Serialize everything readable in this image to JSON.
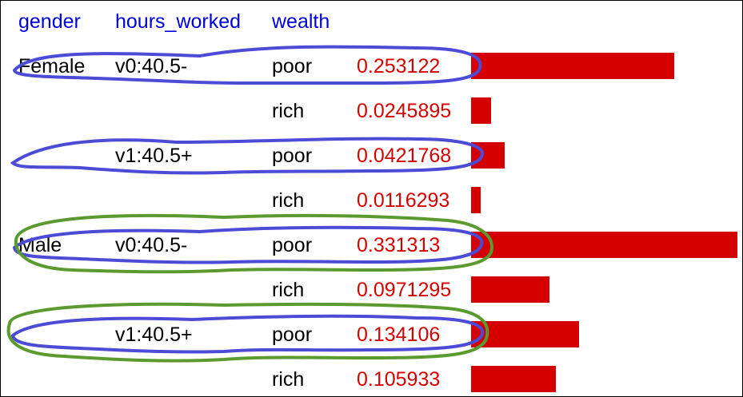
{
  "headers": {
    "gender": "gender",
    "hours_worked": "hours_worked",
    "wealth": "wealth"
  },
  "rows": [
    {
      "gender": "Female",
      "hours": "v0:40.5-",
      "wealth": "poor",
      "value": "0.253122",
      "fraction": 0.253122
    },
    {
      "gender": "",
      "hours": "",
      "wealth": "rich",
      "value": "0.0245895",
      "fraction": 0.0245895
    },
    {
      "gender": "",
      "hours": "v1:40.5+",
      "wealth": "poor",
      "value": "0.0421768",
      "fraction": 0.0421768
    },
    {
      "gender": "",
      "hours": "",
      "wealth": "rich",
      "value": "0.0116293",
      "fraction": 0.0116293
    },
    {
      "gender": "Male",
      "hours": "v0:40.5-",
      "wealth": "poor",
      "value": "0.331313",
      "fraction": 0.331313
    },
    {
      "gender": "",
      "hours": "",
      "wealth": "rich",
      "value": "0.0971295",
      "fraction": 0.0971295
    },
    {
      "gender": "",
      "hours": "v1:40.5+",
      "wealth": "poor",
      "value": "0.134106",
      "fraction": 0.134106
    },
    {
      "gender": "",
      "hours": "",
      "wealth": "rich",
      "value": "0.105933",
      "fraction": 0.105933
    }
  ],
  "colors": {
    "header": "#0000d8",
    "value_text": "#d40000",
    "bar": "#d40000",
    "blue_annotation": "#4b4bd6",
    "green_annotation": "#5a9a2e"
  }
}
